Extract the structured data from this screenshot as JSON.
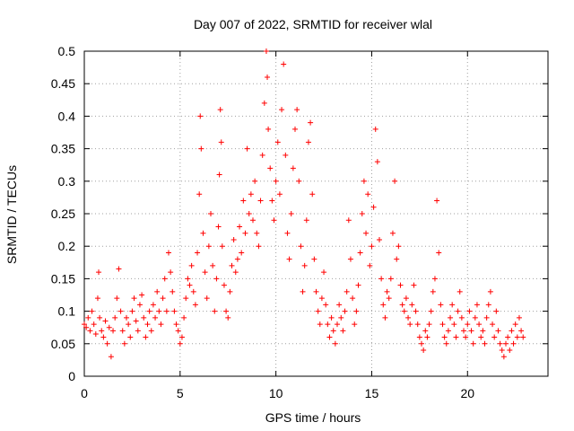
{
  "chart_data": {
    "type": "scatter",
    "title": "Day 007 of 2022, SRMTID for receiver wlal",
    "xlabel": "GPS time / hours",
    "ylabel": "SRMTID / TECUs",
    "xlim": [
      0,
      24.2
    ],
    "ylim": [
      0,
      0.5
    ],
    "x_ticks": [
      0,
      5,
      10,
      15,
      20
    ],
    "y_ticks": [
      0,
      0.05,
      0.1,
      0.15,
      0.2,
      0.25,
      0.3,
      0.35,
      0.4,
      0.45,
      0.5
    ],
    "x_tick_labels": [
      "0",
      "5",
      "10",
      "15",
      "20"
    ],
    "y_tick_labels": [
      "0",
      "0.05",
      "0.1",
      "0.15",
      "0.2",
      "0.25",
      "0.3",
      "0.35",
      "0.4",
      "0.45",
      "0.5"
    ],
    "grid": true,
    "marker": "+",
    "series_color": "#ff0000",
    "series": [
      {
        "name": "SRMTID",
        "points": [
          [
            0.0,
            0.08
          ],
          [
            0.1,
            0.075
          ],
          [
            0.2,
            0.09
          ],
          [
            0.3,
            0.07
          ],
          [
            0.4,
            0.1
          ],
          [
            0.5,
            0.08
          ],
          [
            0.6,
            0.065
          ],
          [
            0.7,
            0.12
          ],
          [
            0.75,
            0.16
          ],
          [
            0.8,
            0.09
          ],
          [
            0.9,
            0.07
          ],
          [
            1.0,
            0.06
          ],
          [
            1.1,
            0.085
          ],
          [
            1.2,
            0.05
          ],
          [
            1.3,
            0.075
          ],
          [
            1.4,
            0.03
          ],
          [
            1.5,
            0.07
          ],
          [
            1.6,
            0.09
          ],
          [
            1.7,
            0.12
          ],
          [
            1.8,
            0.165
          ],
          [
            1.9,
            0.1
          ],
          [
            2.0,
            0.07
          ],
          [
            2.1,
            0.05
          ],
          [
            2.2,
            0.09
          ],
          [
            2.3,
            0.08
          ],
          [
            2.4,
            0.06
          ],
          [
            2.5,
            0.1
          ],
          [
            2.6,
            0.12
          ],
          [
            2.7,
            0.085
          ],
          [
            2.8,
            0.07
          ],
          [
            2.9,
            0.11
          ],
          [
            3.0,
            0.125
          ],
          [
            3.1,
            0.09
          ],
          [
            3.2,
            0.06
          ],
          [
            3.3,
            0.08
          ],
          [
            3.4,
            0.1
          ],
          [
            3.5,
            0.07
          ],
          [
            3.6,
            0.11
          ],
          [
            3.7,
            0.09
          ],
          [
            3.8,
            0.13
          ],
          [
            3.9,
            0.1
          ],
          [
            4.0,
            0.08
          ],
          [
            4.1,
            0.12
          ],
          [
            4.2,
            0.15
          ],
          [
            4.3,
            0.1
          ],
          [
            4.4,
            0.19
          ],
          [
            4.5,
            0.16
          ],
          [
            4.6,
            0.13
          ],
          [
            4.7,
            0.1
          ],
          [
            4.8,
            0.08
          ],
          [
            4.9,
            0.07
          ],
          [
            5.0,
            0.05
          ],
          [
            5.1,
            0.06
          ],
          [
            5.2,
            0.09
          ],
          [
            5.3,
            0.12
          ],
          [
            5.4,
            0.15
          ],
          [
            5.5,
            0.14
          ],
          [
            5.6,
            0.17
          ],
          [
            5.7,
            0.13
          ],
          [
            5.8,
            0.11
          ],
          [
            5.9,
            0.19
          ],
          [
            6.0,
            0.28
          ],
          [
            6.05,
            0.4
          ],
          [
            6.1,
            0.35
          ],
          [
            6.2,
            0.22
          ],
          [
            6.3,
            0.16
          ],
          [
            6.4,
            0.12
          ],
          [
            6.5,
            0.2
          ],
          [
            6.6,
            0.25
          ],
          [
            6.7,
            0.17
          ],
          [
            6.8,
            0.1
          ],
          [
            6.9,
            0.15
          ],
          [
            7.0,
            0.23
          ],
          [
            7.05,
            0.31
          ],
          [
            7.1,
            0.41
          ],
          [
            7.15,
            0.36
          ],
          [
            7.2,
            0.2
          ],
          [
            7.3,
            0.14
          ],
          [
            7.4,
            0.1
          ],
          [
            7.5,
            0.09
          ],
          [
            7.6,
            0.13
          ],
          [
            7.7,
            0.17
          ],
          [
            7.8,
            0.21
          ],
          [
            7.9,
            0.16
          ],
          [
            8.0,
            0.18
          ],
          [
            8.1,
            0.23
          ],
          [
            8.2,
            0.19
          ],
          [
            8.3,
            0.27
          ],
          [
            8.4,
            0.22
          ],
          [
            8.5,
            0.35
          ],
          [
            8.6,
            0.25
          ],
          [
            8.7,
            0.28
          ],
          [
            8.8,
            0.24
          ],
          [
            8.9,
            0.3
          ],
          [
            9.0,
            0.22
          ],
          [
            9.1,
            0.2
          ],
          [
            9.2,
            0.27
          ],
          [
            9.3,
            0.34
          ],
          [
            9.4,
            0.42
          ],
          [
            9.5,
            0.5
          ],
          [
            9.55,
            0.46
          ],
          [
            9.6,
            0.38
          ],
          [
            9.7,
            0.32
          ],
          [
            9.8,
            0.27
          ],
          [
            9.9,
            0.24
          ],
          [
            10.0,
            0.3
          ],
          [
            10.1,
            0.36
          ],
          [
            10.2,
            0.28
          ],
          [
            10.3,
            0.41
          ],
          [
            10.4,
            0.48
          ],
          [
            10.5,
            0.34
          ],
          [
            10.6,
            0.22
          ],
          [
            10.7,
            0.18
          ],
          [
            10.8,
            0.25
          ],
          [
            10.9,
            0.32
          ],
          [
            11.0,
            0.38
          ],
          [
            11.1,
            0.41
          ],
          [
            11.2,
            0.3
          ],
          [
            11.3,
            0.2
          ],
          [
            11.4,
            0.13
          ],
          [
            11.5,
            0.17
          ],
          [
            11.6,
            0.24
          ],
          [
            11.7,
            0.36
          ],
          [
            11.8,
            0.39
          ],
          [
            11.9,
            0.28
          ],
          [
            12.0,
            0.18
          ],
          [
            12.1,
            0.13
          ],
          [
            12.2,
            0.1
          ],
          [
            12.3,
            0.08
          ],
          [
            12.4,
            0.12
          ],
          [
            12.5,
            0.16
          ],
          [
            12.6,
            0.11
          ],
          [
            12.7,
            0.08
          ],
          [
            12.8,
            0.06
          ],
          [
            12.9,
            0.09
          ],
          [
            13.0,
            0.07
          ],
          [
            13.1,
            0.05
          ],
          [
            13.2,
            0.08
          ],
          [
            13.3,
            0.11
          ],
          [
            13.4,
            0.09
          ],
          [
            13.5,
            0.07
          ],
          [
            13.6,
            0.1
          ],
          [
            13.7,
            0.13
          ],
          [
            13.8,
            0.24
          ],
          [
            13.9,
            0.18
          ],
          [
            14.0,
            0.12
          ],
          [
            14.1,
            0.08
          ],
          [
            14.2,
            0.1
          ],
          [
            14.3,
            0.14
          ],
          [
            14.4,
            0.19
          ],
          [
            14.5,
            0.25
          ],
          [
            14.6,
            0.3
          ],
          [
            14.7,
            0.22
          ],
          [
            14.8,
            0.28
          ],
          [
            14.9,
            0.17
          ],
          [
            15.0,
            0.2
          ],
          [
            15.1,
            0.26
          ],
          [
            15.2,
            0.38
          ],
          [
            15.3,
            0.33
          ],
          [
            15.4,
            0.21
          ],
          [
            15.5,
            0.15
          ],
          [
            15.6,
            0.11
          ],
          [
            15.7,
            0.09
          ],
          [
            15.8,
            0.13
          ],
          [
            15.9,
            0.12
          ],
          [
            16.0,
            0.15
          ],
          [
            16.1,
            0.22
          ],
          [
            16.2,
            0.3
          ],
          [
            16.3,
            0.18
          ],
          [
            16.4,
            0.2
          ],
          [
            16.5,
            0.14
          ],
          [
            16.6,
            0.11
          ],
          [
            16.7,
            0.1
          ],
          [
            16.8,
            0.12
          ],
          [
            16.9,
            0.09
          ],
          [
            17.0,
            0.08
          ],
          [
            17.1,
            0.11
          ],
          [
            17.2,
            0.14
          ],
          [
            17.3,
            0.1
          ],
          [
            17.4,
            0.08
          ],
          [
            17.5,
            0.06
          ],
          [
            17.6,
            0.05
          ],
          [
            17.7,
            0.04
          ],
          [
            17.8,
            0.07
          ],
          [
            17.9,
            0.06
          ],
          [
            18.0,
            0.08
          ],
          [
            18.1,
            0.1
          ],
          [
            18.2,
            0.13
          ],
          [
            18.3,
            0.15
          ],
          [
            18.4,
            0.27
          ],
          [
            18.5,
            0.19
          ],
          [
            18.6,
            0.11
          ],
          [
            18.7,
            0.08
          ],
          [
            18.8,
            0.06
          ],
          [
            18.9,
            0.05
          ],
          [
            19.0,
            0.07
          ],
          [
            19.1,
            0.09
          ],
          [
            19.2,
            0.11
          ],
          [
            19.3,
            0.08
          ],
          [
            19.4,
            0.06
          ],
          [
            19.5,
            0.1
          ],
          [
            19.6,
            0.13
          ],
          [
            19.7,
            0.09
          ],
          [
            19.8,
            0.07
          ],
          [
            19.9,
            0.06
          ],
          [
            20.0,
            0.08
          ],
          [
            20.1,
            0.1
          ],
          [
            20.2,
            0.07
          ],
          [
            20.3,
            0.05
          ],
          [
            20.4,
            0.09
          ],
          [
            20.5,
            0.11
          ],
          [
            20.6,
            0.08
          ],
          [
            20.7,
            0.06
          ],
          [
            20.8,
            0.07
          ],
          [
            20.9,
            0.05
          ],
          [
            21.0,
            0.09
          ],
          [
            21.1,
            0.11
          ],
          [
            21.2,
            0.13
          ],
          [
            21.3,
            0.08
          ],
          [
            21.4,
            0.06
          ],
          [
            21.5,
            0.1
          ],
          [
            21.6,
            0.07
          ],
          [
            21.7,
            0.05
          ],
          [
            21.8,
            0.04
          ],
          [
            21.9,
            0.03
          ],
          [
            22.0,
            0.05
          ],
          [
            22.1,
            0.06
          ],
          [
            22.2,
            0.04
          ],
          [
            22.3,
            0.07
          ],
          [
            22.4,
            0.05
          ],
          [
            22.5,
            0.08
          ],
          [
            22.6,
            0.06
          ],
          [
            22.7,
            0.09
          ],
          [
            22.8,
            0.07
          ],
          [
            22.9,
            0.06
          ]
        ]
      }
    ]
  }
}
